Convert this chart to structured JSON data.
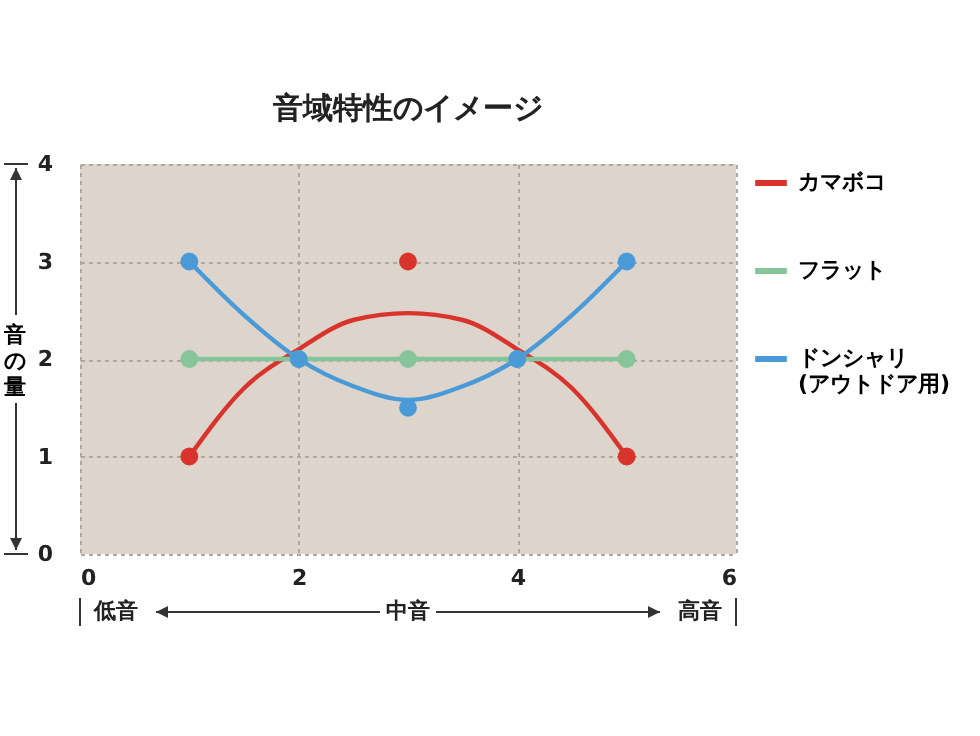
{
  "chart_data": {
    "type": "line",
    "title": "音域特性のイメージ",
    "ylabel": "音の量",
    "annotations": [
      "低音",
      "中音",
      "高音"
    ],
    "xlim": [
      0,
      6
    ],
    "xticks": [
      0,
      2,
      4,
      6
    ],
    "ylim": [
      0,
      4
    ],
    "yticks": [
      0,
      1,
      2,
      3,
      4
    ],
    "grid": true,
    "legend": "right",
    "marker": "circle",
    "series": [
      {
        "name": "カマボコ",
        "type": "scatter",
        "color": "#d9342b",
        "x": [
          1,
          3,
          5
        ],
        "values": [
          1,
          3,
          1
        ]
      },
      {
        "type": "line",
        "marker": "none",
        "color": "#d9342b",
        "x": [
          1,
          1.5,
          2,
          2.5,
          3,
          3.5,
          4,
          4.5,
          5
        ],
        "values": [
          1,
          1.7,
          2.1,
          2.4,
          2.47,
          2.4,
          2.1,
          1.7,
          1
        ]
      },
      {
        "name": "フラット",
        "color": "#86c49a",
        "x": [
          1,
          2,
          3,
          4,
          5
        ],
        "values": [
          2,
          2,
          2,
          2,
          2
        ]
      },
      {
        "name": "ドンシャリ (アウトドア用)",
        "type": "scatter",
        "color": "#4a9ad8",
        "x": [
          1,
          2,
          3,
          4,
          5
        ],
        "values": [
          3,
          2,
          1.5,
          2,
          3
        ]
      },
      {
        "type": "line",
        "marker": "none",
        "color": "#4a9ad8",
        "x": [
          1,
          1.5,
          2,
          2.5,
          3,
          3.5,
          4,
          4.5,
          5
        ],
        "values": [
          3,
          2.45,
          2,
          1.72,
          1.58,
          1.72,
          2,
          2.45,
          3
        ]
      }
    ]
  }
}
